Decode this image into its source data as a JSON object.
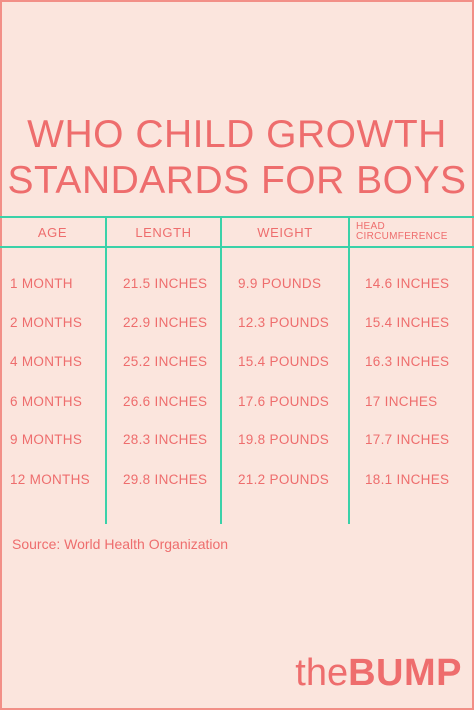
{
  "title": {
    "line1": "WHO CHILD GROWTH",
    "line2": "STANDARDS FOR BOYS"
  },
  "table": {
    "headers": [
      "AGE",
      "LENGTH",
      "WEIGHT",
      "HEAD CIRCUMFERENCE"
    ],
    "rows": [
      [
        "1 MONTH",
        "21.5 INCHES",
        "9.9 POUNDS",
        "14.6 INCHES"
      ],
      [
        "2 MONTHS",
        "22.9 INCHES",
        "12.3 POUNDS",
        "15.4 INCHES"
      ],
      [
        "4 MONTHS",
        "25.2 INCHES",
        "15.4 POUNDS",
        "16.3 INCHES"
      ],
      [
        "6 MONTHS",
        "26.6 INCHES",
        "17.6 POUNDS",
        "17 INCHES"
      ],
      [
        "9 MONTHS",
        "28.3 INCHES",
        "19.8 POUNDS",
        "17.7 INCHES"
      ],
      [
        "12 MONTHS",
        "29.8 INCHES",
        "21.2 POUNDS",
        "18.1 INCHES"
      ]
    ]
  },
  "source": "Source: World Health Organization",
  "logo": {
    "prefix": "the",
    "brand": "BUMP"
  },
  "colors": {
    "accent": "#ee6d6d",
    "rule": "#3ad1a8",
    "background": "#fbe5dd"
  }
}
